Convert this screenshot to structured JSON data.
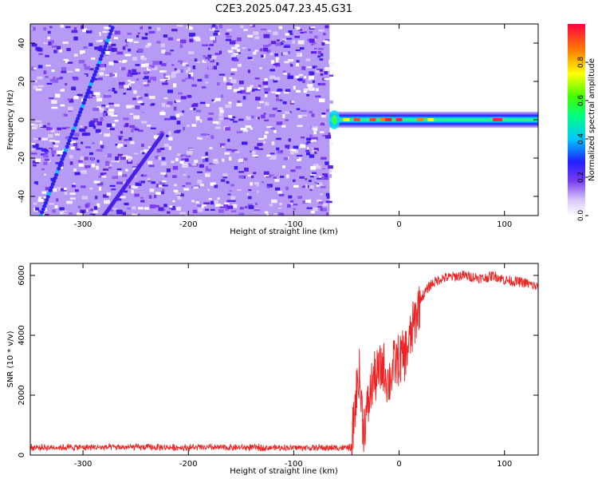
{
  "title": "C2E3.2025.047.23.45.G31",
  "colors": {
    "snr_line": "#ee2222",
    "spec_background": "#7a3cf0",
    "axis": "#000000"
  },
  "chart_data": [
    {
      "type": "heatmap",
      "xlabel": "Height of straight line (km)",
      "ylabel": "Frequency (Hz)",
      "xlim": [
        -350,
        132
      ],
      "ylim": [
        -50,
        50
      ],
      "x_ticks": [
        -300,
        -200,
        -100,
        0,
        100
      ],
      "y_ticks": [
        -40,
        -20,
        0,
        20,
        40
      ],
      "x_tick_labels": [
        "-300",
        "-200",
        "-100",
        "0",
        "100"
      ],
      "y_tick_labels": [
        "-40",
        "-20",
        "0",
        "20",
        "40"
      ],
      "noise_region_x": [
        -350,
        -66
      ],
      "signal_band": {
        "x": [
          -66,
          132
        ],
        "center_frequency": 0,
        "half_width": 3
      },
      "diagonal_traces": [
        {
          "x_start": -340,
          "y_start": -50,
          "x_end": -272,
          "y_end": 48
        },
        {
          "x_start": -280,
          "y_start": -50,
          "x_end": -225,
          "y_end": -8
        }
      ],
      "colorbar": {
        "label": "Normalized spectral amplitude",
        "range": [
          0,
          1
        ],
        "ticks": [
          0.0,
          0.2,
          0.4,
          0.6,
          0.8
        ],
        "tick_labels": [
          "0.0",
          "0.2",
          "0.4",
          "0.6",
          "0.8"
        ]
      },
      "grid": false
    },
    {
      "type": "line",
      "xlabel": "Height of straight line (km)",
      "ylabel": "SNR (10 * v/v)",
      "xlim": [
        -350,
        132
      ],
      "ylim": [
        0,
        6400
      ],
      "x_ticks": [
        -300,
        -200,
        -100,
        0,
        100
      ],
      "y_ticks": [
        0,
        2000,
        4000,
        6000
      ],
      "x_tick_labels": [
        "-300",
        "-200",
        "-100",
        "0",
        "100"
      ],
      "y_tick_labels": [
        "0",
        "2000",
        "4000",
        "6000"
      ],
      "series": [
        {
          "x": [
            -350,
            -300,
            -250,
            -200,
            -150,
            -100,
            -60,
            -45,
            -42,
            -38,
            -34,
            -30,
            -25,
            -20,
            -15,
            -10,
            -5,
            0,
            5,
            10,
            15,
            20,
            30,
            40,
            50,
            60,
            70,
            80,
            90,
            100,
            110,
            120,
            132
          ],
          "y": [
            250,
            260,
            260,
            250,
            250,
            245,
            240,
            250,
            1600,
            2800,
            900,
            1500,
            2500,
            2700,
            3000,
            2400,
            3000,
            3200,
            3300,
            3800,
            4500,
            5200,
            5700,
            5900,
            5950,
            6000,
            5950,
            5900,
            6000,
            5850,
            5800,
            5750,
            5600
          ]
        }
      ],
      "grid": false
    }
  ]
}
